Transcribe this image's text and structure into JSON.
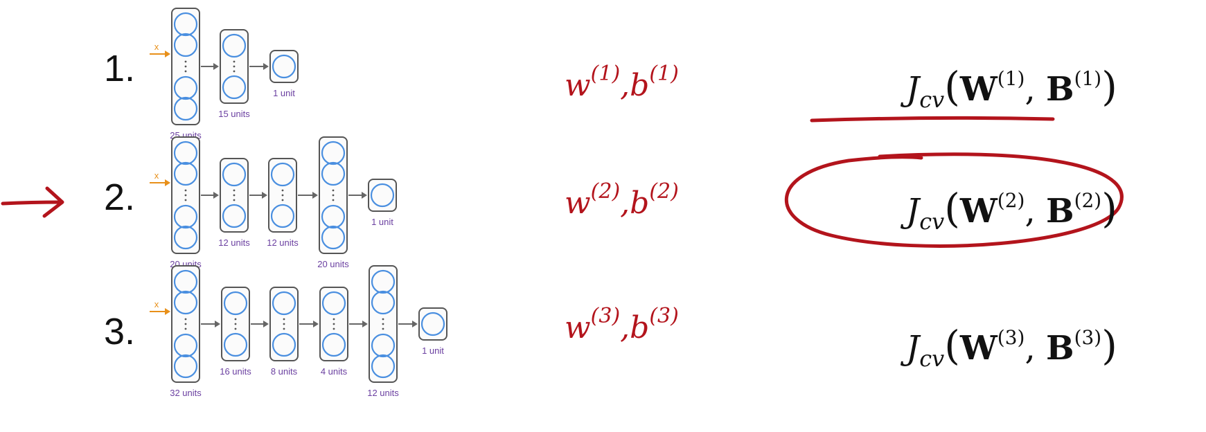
{
  "rows": [
    {
      "number": "1.",
      "input_label": "x",
      "layers": [
        {
          "label": "25 units",
          "circles": 4
        },
        {
          "label": "15 units",
          "circles": 2
        },
        {
          "label": "1 unit",
          "circles": 1
        }
      ],
      "params": {
        "w": "w",
        "b": "b",
        "index": "(1)",
        "sep": ","
      },
      "cost": {
        "J": "J",
        "sub": "cv",
        "W": "W",
        "B": "B",
        "index": "(1)"
      }
    },
    {
      "number": "2.",
      "input_label": "x",
      "layers": [
        {
          "label": "20 units",
          "circles": 4
        },
        {
          "label": "12 units",
          "circles": 2
        },
        {
          "label": "12 units",
          "circles": 2
        },
        {
          "label": "20 units",
          "circles": 4
        },
        {
          "label": "1 unit",
          "circles": 1
        }
      ],
      "params": {
        "w": "w",
        "b": "b",
        "index": "(2)",
        "sep": ","
      },
      "cost": {
        "J": "J",
        "sub": "cv",
        "W": "W",
        "B": "B",
        "index": "(2)"
      }
    },
    {
      "number": "3.",
      "input_label": "x",
      "layers": [
        {
          "label": "32 units",
          "circles": 4
        },
        {
          "label": "16 units",
          "circles": 2
        },
        {
          "label": "8 units",
          "circles": 2
        },
        {
          "label": "4 units",
          "circles": 2
        },
        {
          "label": "12 units",
          "circles": 4
        },
        {
          "label": "1 unit",
          "circles": 1
        }
      ],
      "params": {
        "w": "w",
        "b": "b",
        "index": "(3)",
        "sep": ","
      },
      "cost": {
        "J": "J",
        "sub": "cv",
        "W": "W",
        "B": "B",
        "index": "(3)"
      }
    }
  ],
  "annotations": {
    "pointer_arrow_row": 2,
    "underline_row": 1,
    "circled_row": 2
  },
  "colors": {
    "ink_red": "#b3141c",
    "node_blue": "#4a8fe0",
    "label_purple": "#6a3fa0",
    "input_orange": "#e8901a",
    "box_border": "#555555"
  }
}
